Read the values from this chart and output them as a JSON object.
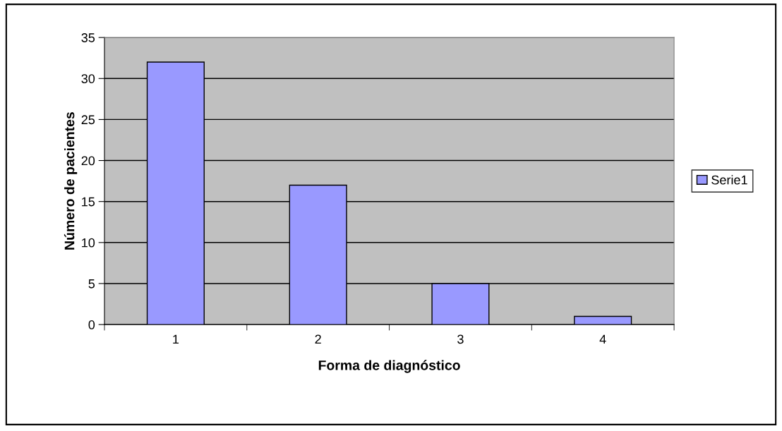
{
  "chart_data": {
    "type": "bar",
    "xlabel": "Forma de diagnóstico",
    "ylabel": "Número de pacientes",
    "categories": [
      "1",
      "2",
      "3",
      "4"
    ],
    "series": [
      {
        "name": "Serie1",
        "color": "#9999ff",
        "values": [
          32,
          17,
          5,
          1
        ]
      }
    ],
    "ylim": [
      0,
      35
    ],
    "yticks": [
      0,
      5,
      10,
      15,
      20,
      25,
      30,
      35
    ],
    "grid": "y",
    "legend": "right"
  }
}
